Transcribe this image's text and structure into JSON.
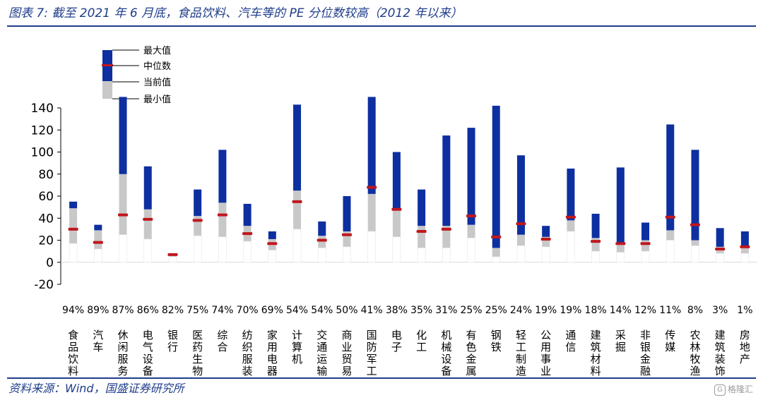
{
  "title": "图表 7: 截至 2021 年 6 月底，食品饮料、汽车等的 PE 分位数较高（2012 年以来）",
  "source": "资料来源：Wind，国盛证券研究所",
  "watermark": {
    "text": "格隆汇",
    "icon": "watermark-logo-icon"
  },
  "colors": {
    "range_upper": "#0d2fa0",
    "range_lower": "#c8c8c8",
    "median": "#c0171d",
    "axis": "#000000",
    "title": "#1f3d8a"
  },
  "chart_data": {
    "type": "range-bar",
    "ylim": [
      -20,
      140
    ],
    "yticks": [
      -20,
      0,
      20,
      40,
      60,
      80,
      100,
      120,
      140
    ],
    "legend": [
      "最大值",
      "中位数",
      "当前值",
      "最小值"
    ],
    "categories": [
      "食品饮料",
      "汽车",
      "休闲服务",
      "电气设备",
      "银行",
      "医药生物",
      "综合",
      "纺织服装",
      "家用电器",
      "计算机",
      "交通运输",
      "商业贸易",
      "国防军工",
      "电子",
      "化工",
      "机械设备",
      "有色金属",
      "钢铁",
      "轻工制造",
      "公用事业",
      "通信",
      "建筑材料",
      "采掘",
      "非银金融",
      "传媒",
      "农林牧渔",
      "建筑装饰",
      "房地产"
    ],
    "percentiles": [
      "94%",
      "89%",
      "87%",
      "86%",
      "82%",
      "75%",
      "74%",
      "70%",
      "69%",
      "54%",
      "54%",
      "50%",
      "41%",
      "38%",
      "35%",
      "31%",
      "25%",
      "25%",
      "24%",
      "19%",
      "19%",
      "18%",
      "14%",
      "12%",
      "11%",
      "8%",
      "3%",
      "1%"
    ],
    "series": [
      {
        "name": "最大值",
        "values": [
          55,
          34,
          150,
          87,
          8,
          66,
          102,
          53,
          28,
          143,
          37,
          60,
          150,
          100,
          66,
          115,
          122,
          142,
          97,
          33,
          85,
          44,
          86,
          36,
          125,
          102,
          31,
          28
        ]
      },
      {
        "name": "当前值",
        "values": [
          49,
          29,
          80,
          48,
          6,
          42,
          54,
          33,
          21,
          65,
          24,
          28,
          62,
          48,
          33,
          33,
          34,
          13,
          25,
          23,
          38,
          22,
          18,
          20,
          29,
          20,
          14,
          15
        ]
      },
      {
        "name": "中位数",
        "values": [
          30,
          18,
          43,
          39,
          7,
          38,
          43,
          26,
          17,
          55,
          20,
          25,
          68,
          48,
          28,
          30,
          42,
          23,
          35,
          21,
          41,
          19,
          17,
          17,
          41,
          34,
          12,
          14
        ]
      },
      {
        "name": "最小值",
        "values": [
          17,
          12,
          25,
          21,
          5,
          24,
          23,
          19,
          11,
          30,
          13,
          14,
          28,
          23,
          13,
          13,
          22,
          5,
          15,
          14,
          28,
          10,
          9,
          10,
          20,
          15,
          8,
          8
        ]
      }
    ]
  }
}
